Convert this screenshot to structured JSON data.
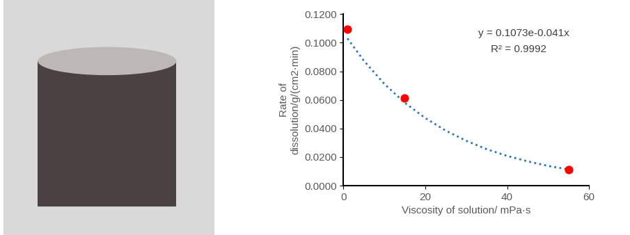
{
  "chart_data": {
    "type": "scatter",
    "x_label": "Viscosity of solution/ mPa·s",
    "y_label": "Rate of\ndissolution/g/(cm2·min)",
    "annotations": [
      "y = 0.1073e-0.041x",
      "R² = 0.9992"
    ],
    "series": [
      {
        "type": "scatter",
        "color": "#ff0000",
        "marker": "o",
        "x": [
          1,
          15,
          55
        ],
        "values": [
          0.1093,
          0.0611,
          0.0113
        ]
      },
      {
        "type": "line",
        "color": "#2e75b6",
        "line_style": "dotted",
        "x": [
          1,
          5,
          10,
          15,
          20,
          25,
          30,
          35,
          40,
          45,
          50,
          55
        ],
        "values": [
          0.103,
          0.0874,
          0.0712,
          0.058,
          0.0473,
          0.0385,
          0.0314,
          0.0255,
          0.0208,
          0.017,
          0.0138,
          0.0113
        ]
      }
    ],
    "xlim": [
      0,
      60
    ],
    "xticks": [
      0,
      20,
      40,
      60
    ],
    "ylim": [
      0,
      0.12
    ],
    "yticks": [
      {
        "value": 0,
        "label": "0.0000"
      },
      {
        "value": 0.02,
        "label": "0.0200"
      },
      {
        "value": 0.04,
        "label": "0.0400"
      },
      {
        "value": 0.06,
        "label": "0.0600"
      },
      {
        "value": 0.08,
        "label": "0.0800"
      },
      {
        "value": 0.1,
        "label": "0.1000"
      },
      {
        "value": 0.12,
        "label": "0.1200"
      }
    ],
    "grid": false
  }
}
